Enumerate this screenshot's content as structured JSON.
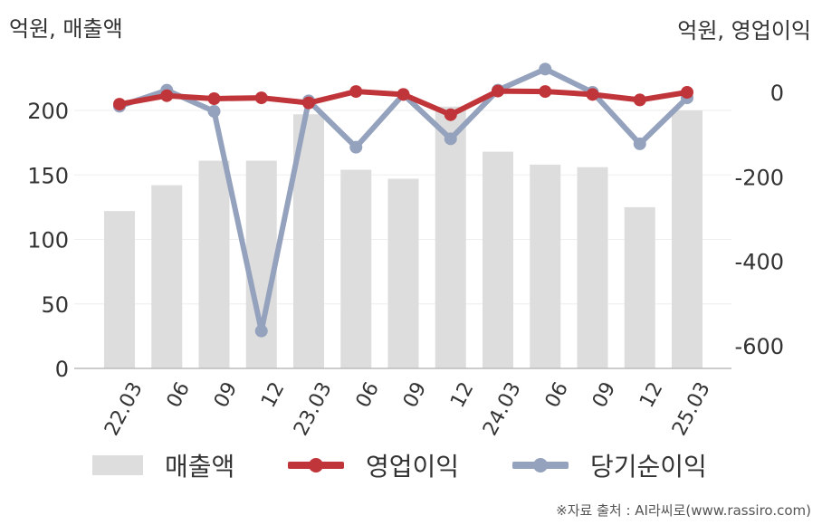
{
  "units": {
    "left": "억원, 매출액",
    "right": "억원, 영업이익"
  },
  "source": "※자료 출처 : AI라씨로(www.rassiro.com)",
  "colors": {
    "bar": "#dddddd",
    "op_line": "#c0353a",
    "net_line": "#95a2bd",
    "axis": "#bbbbbb",
    "grid": "#eeeeee",
    "text": "#333333"
  },
  "chart_data": {
    "type": "bar",
    "title": "",
    "xlabel": "",
    "categories": [
      "22.03",
      "06",
      "09",
      "12",
      "23.03",
      "06",
      "09",
      "12",
      "24.03",
      "06",
      "09",
      "12",
      "25.03"
    ],
    "y_left": {
      "range": [
        0,
        230
      ],
      "ticks": [
        0,
        50,
        100,
        150,
        200
      ],
      "tick_labels": [
        "0",
        "50",
        "100",
        "150",
        "200"
      ]
    },
    "y_right": {
      "range": [
        -655,
        55
      ],
      "ticks": [
        0,
        -200,
        -400,
        -600
      ],
      "tick_labels": [
        "0",
        "-200",
        "-400",
        "-600"
      ]
    },
    "series": [
      {
        "name": "매출액",
        "type": "bar",
        "axis": "left",
        "values": [
          122,
          142,
          161,
          161,
          197,
          154,
          147,
          203,
          168,
          158,
          156,
          125,
          200
        ]
      },
      {
        "name": "영업이익",
        "type": "line",
        "axis": "right",
        "values": [
          -28,
          -8,
          -15,
          -13,
          -25,
          2,
          -5,
          -53,
          3,
          2,
          -5,
          -18,
          0
        ]
      },
      {
        "name": "당기순이익",
        "type": "line",
        "axis": "right",
        "values": [
          -33,
          5,
          -45,
          -565,
          -20,
          -130,
          -5,
          -110,
          5,
          55,
          0,
          -122,
          -13
        ]
      }
    ],
    "grid": true,
    "legend": "bottom"
  }
}
